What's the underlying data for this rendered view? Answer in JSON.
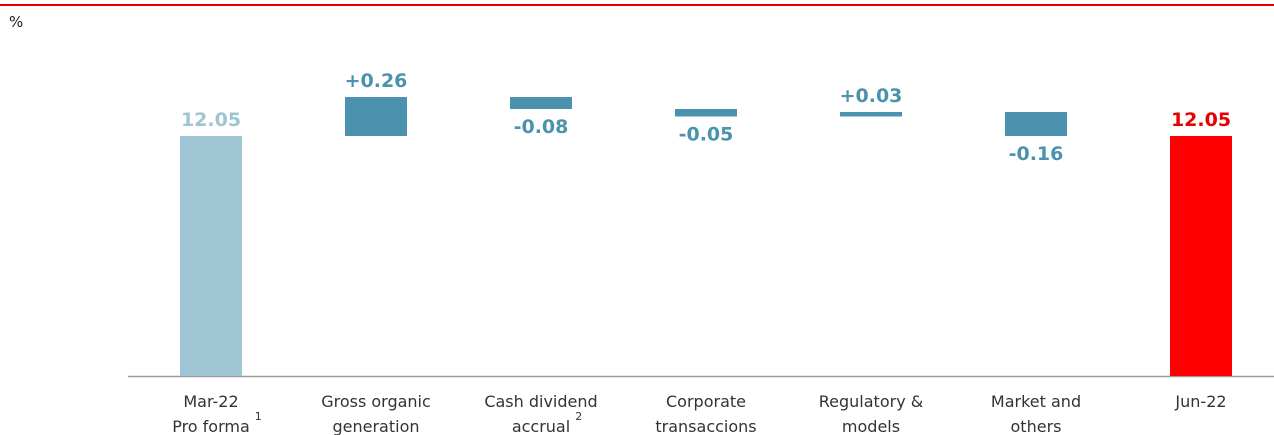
{
  "chart_data": {
    "type": "waterfall",
    "unit": "%",
    "categories": [
      [
        "Mar-22",
        "Pro forma"
      ],
      [
        "Gross organic",
        "generation"
      ],
      [
        "Cash dividend",
        "accrual"
      ],
      [
        "Corporate",
        "transaccions"
      ],
      [
        "Regulatory &",
        "models"
      ],
      [
        "Market and",
        "others"
      ],
      [
        "Jun-22"
      ]
    ],
    "category_footnotes": {
      "0": "1",
      "2": "2"
    },
    "kinds": [
      "total",
      "delta",
      "delta",
      "delta",
      "delta",
      "delta",
      "total"
    ],
    "values": [
      12.05,
      0.26,
      -0.08,
      -0.05,
      0.03,
      -0.16,
      12.05
    ],
    "value_labels": [
      "12.05",
      "+0.26",
      "-0.08",
      "-0.05",
      "+0.03",
      "-0.16",
      "12.05"
    ],
    "colors": [
      "#9fc4d4",
      "#4b92ae",
      "#4b92ae",
      "#4b92ae",
      "#4b92ae",
      "#4b92ae",
      "#ff0000"
    ],
    "label_colors": [
      "#9fc4d4",
      "#4b92ae",
      "#4b92ae",
      "#4b92ae",
      "#4b92ae",
      "#4b92ae",
      "#e60000"
    ],
    "ylim": [
      10.45,
      12.55
    ]
  }
}
